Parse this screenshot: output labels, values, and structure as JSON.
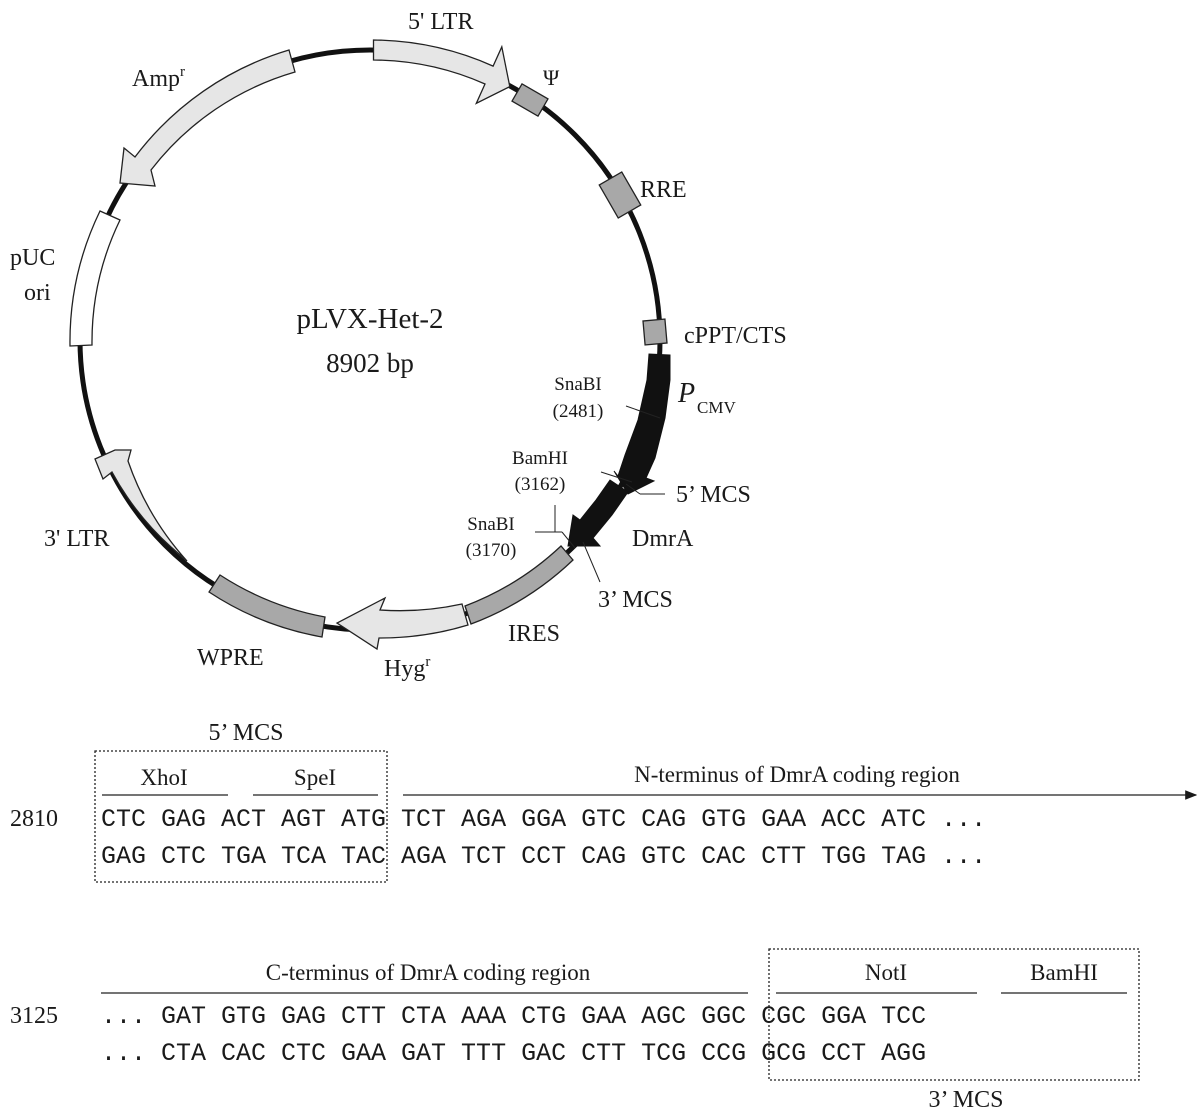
{
  "plasmid": {
    "name": "pLVX-Het-2",
    "size": "8902 bp",
    "colors": {
      "backbone": "#111111",
      "light_feature": "#e6e6e6",
      "medium_feature": "#a8a8a8",
      "dark_feature": "#111111",
      "white_feature": "#ffffff"
    },
    "features": {
      "ltr5": "5' LTR",
      "psi": "Ψ",
      "rre": "RRE",
      "cppt": "cPPT/CTS",
      "pcmv_main": "P",
      "pcmv_sub": "CMV",
      "mcs5": "5’ MCS",
      "dmra": "DmrA",
      "mcs3": "3’ MCS",
      "ires": "IRES",
      "hyg_main": "Hyg",
      "hyg_sup": "r",
      "wpre": "WPRE",
      "ltr3": "3' LTR",
      "puc1": "pUC",
      "puc2": "ori",
      "amp_main": "Amp",
      "amp_sup": "r"
    },
    "sites": [
      {
        "name": "SnaBI",
        "pos": "(2481)"
      },
      {
        "name": "BamHI",
        "pos": "(3162)"
      },
      {
        "name": "SnaBI",
        "pos": "(3170)"
      }
    ]
  },
  "seq_top": {
    "box_label": "5’ MCS",
    "line_number": "2810",
    "enzymes": [
      "XhoI",
      "SpeI"
    ],
    "region_label": "N-terminus of DmrA coding region",
    "row1": "CTC GAG ACT AGT ATG TCT AGA GGA GTC CAG GTG GAA ACC ATC ...",
    "row2": "GAG CTC TGA TCA TAC AGA TCT CCT CAG GTC CAC CTT TGG TAG ..."
  },
  "seq_bottom": {
    "line_number": "3125",
    "region_label": "C-terminus of DmrA coding region",
    "enzymes": [
      "NotI",
      "BamHI"
    ],
    "box_label": "3’ MCS",
    "row1": "... GAT GTG GAG CTT CTA AAA CTG GAA AGC GGC CGC GGA TCC",
    "row2": "... CTA CAC CTC GAA GAT TTT GAC CTT TCG CCG GCG CCT AGG"
  }
}
